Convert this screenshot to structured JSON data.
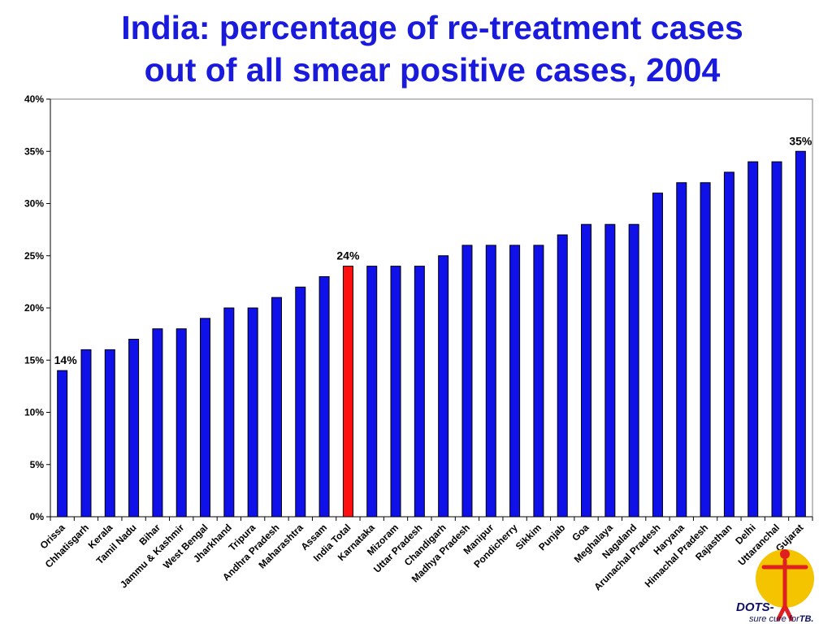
{
  "chart_data": {
    "type": "bar",
    "title_lines": [
      "India: percentage of re-treatment cases",
      "out of all smear positive cases, 2004"
    ],
    "xlabel": "",
    "ylabel": "",
    "ylim": [
      0,
      40
    ],
    "yticks": [
      0,
      5,
      10,
      15,
      20,
      25,
      30,
      35,
      40
    ],
    "ytick_labels": [
      "0%",
      "5%",
      "10%",
      "15%",
      "20%",
      "25%",
      "30%",
      "35%",
      "40%"
    ],
    "grid": false,
    "legend": "none",
    "categories": [
      "Orissa",
      "Chhatisgarh",
      "Kerala",
      "Tamil Nadu",
      "Bihar",
      "Jammu & Kashmir",
      "West Bengal",
      "Jharkhand",
      "Tripura",
      "Andhra Pradesh",
      "Maharashtra",
      "Assam",
      "India Total",
      "Karnataka",
      "Mizoram",
      "Uttar Pradesh",
      "Chandigarh",
      "Madhya Pradesh",
      "Manipur",
      "Pondicherry",
      "Sikkim",
      "Punjab",
      "Goa",
      "Meghalaya",
      "Nagaland",
      "Arunachal Pradesh",
      "Haryana",
      "Himachal Pradesh",
      "Rajasthan",
      "Delhi",
      "Uttaranchal",
      "Gujarat"
    ],
    "values": [
      14,
      16,
      16,
      17,
      18,
      18,
      19,
      20,
      20,
      21,
      22,
      23,
      24,
      24,
      24,
      24,
      25,
      26,
      26,
      26,
      26,
      27,
      28,
      28,
      28,
      31,
      32,
      32,
      33,
      34,
      34,
      35
    ],
    "bar_color": "#1010e8",
    "highlight_index": 12,
    "highlight_color": "#ff1010",
    "data_labels": [
      {
        "index": 0,
        "text": "14%"
      },
      {
        "index": 12,
        "text": "24%"
      },
      {
        "index": 31,
        "text": "35%"
      }
    ]
  },
  "logo": {
    "line1": "DOTS-",
    "line2": "sure cure for",
    "line2_bold": "TB."
  },
  "colors": {
    "title": "#1a1adc",
    "axis": "#000000"
  }
}
